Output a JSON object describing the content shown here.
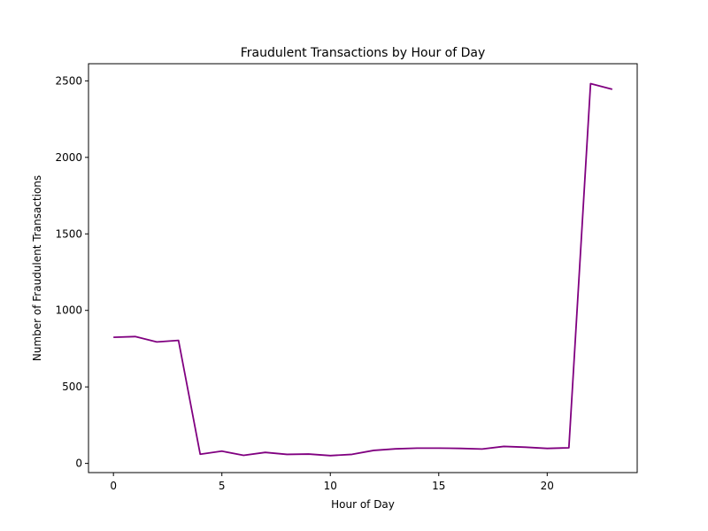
{
  "chart_data": {
    "type": "line",
    "title": "Fraudulent Transactions by Hour of Day",
    "xlabel": "Hour of Day",
    "ylabel": "Number of Fraudulent Transactions",
    "xlim": [
      -1.15,
      24.15
    ],
    "ylim": [
      -60,
      2612
    ],
    "xticks": [
      0,
      5,
      10,
      15,
      20
    ],
    "yticks": [
      0,
      500,
      1000,
      1500,
      2000,
      2500
    ],
    "grid": false,
    "line_color": "#800080",
    "series": [
      {
        "x": [
          0,
          1,
          2,
          3,
          4,
          5,
          6,
          7,
          8,
          9,
          10,
          11,
          12,
          13,
          14,
          15,
          16,
          17,
          18,
          19,
          20,
          21,
          22,
          23
        ],
        "values": [
          824,
          829,
          794,
          804,
          60,
          80,
          53,
          72,
          59,
          61,
          51,
          59,
          85,
          95,
          100,
          100,
          98,
          94,
          111,
          106,
          98,
          102,
          2482,
          2445
        ]
      }
    ]
  }
}
